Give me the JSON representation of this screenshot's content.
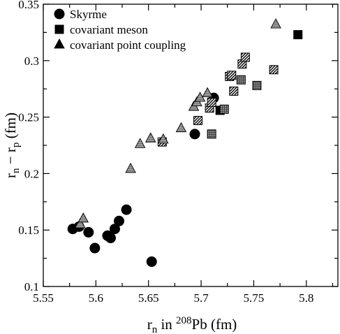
{
  "chart_data": {
    "type": "scatter",
    "xlabel": {
      "pre": "r",
      "sub": "n",
      "mid": " in ",
      "sup": "208",
      "post": "Pb (fm)"
    },
    "ylabel": {
      "r1": "r",
      "sub1": "n",
      "minus": " − r",
      "sub2": "p",
      "unit": " (fm)"
    },
    "xlim": [
      5.55,
      5.83
    ],
    "ylim": [
      0.1,
      0.35
    ],
    "x_ticks": [
      5.55,
      5.6,
      5.65,
      5.7,
      5.75,
      5.8
    ],
    "x_tick_labels": [
      "5.55",
      "5.6",
      "5.65",
      "5.7",
      "5.75",
      "5.8"
    ],
    "y_ticks": [
      0.1,
      0.15,
      0.2,
      0.25,
      0.3,
      0.35
    ],
    "y_tick_labels": [
      "0.1",
      "0.15",
      "0.2",
      "0.25",
      "0.3",
      "0.35"
    ],
    "legend_position": "top-left",
    "series": [
      {
        "name": "Skyrme",
        "marker": "circle",
        "points": [
          {
            "x": 5.578,
            "y": 0.151,
            "fill": "black"
          },
          {
            "x": 5.584,
            "y": 0.153,
            "fill": "black"
          },
          {
            "x": 5.593,
            "y": 0.148,
            "fill": "black"
          },
          {
            "x": 5.599,
            "y": 0.134,
            "fill": "black"
          },
          {
            "x": 5.611,
            "y": 0.145,
            "fill": "black"
          },
          {
            "x": 5.614,
            "y": 0.143,
            "fill": "black"
          },
          {
            "x": 5.618,
            "y": 0.151,
            "fill": "black"
          },
          {
            "x": 5.622,
            "y": 0.158,
            "fill": "black"
          },
          {
            "x": 5.629,
            "y": 0.168,
            "fill": "black"
          },
          {
            "x": 5.653,
            "y": 0.122,
            "fill": "black"
          },
          {
            "x": 5.694,
            "y": 0.235,
            "fill": "black"
          },
          {
            "x": 5.712,
            "y": 0.267,
            "fill": "black"
          }
        ]
      },
      {
        "name": "covariant meson",
        "marker": "square",
        "points": [
          {
            "x": 5.663,
            "y": 0.228,
            "fill": "hatch"
          },
          {
            "x": 5.697,
            "y": 0.247,
            "fill": "hatch"
          },
          {
            "x": 5.708,
            "y": 0.258,
            "fill": "hatch"
          },
          {
            "x": 5.71,
            "y": 0.263,
            "fill": "hatch"
          },
          {
            "x": 5.71,
            "y": 0.235,
            "fill": "grid"
          },
          {
            "x": 5.718,
            "y": 0.256,
            "fill": "black"
          },
          {
            "x": 5.722,
            "y": 0.257,
            "fill": "grid"
          },
          {
            "x": 5.727,
            "y": 0.286,
            "fill": "hatch"
          },
          {
            "x": 5.729,
            "y": 0.287,
            "fill": "hatch"
          },
          {
            "x": 5.731,
            "y": 0.273,
            "fill": "hatch"
          },
          {
            "x": 5.738,
            "y": 0.283,
            "fill": "grid"
          },
          {
            "x": 5.739,
            "y": 0.297,
            "fill": "hatch"
          },
          {
            "x": 5.742,
            "y": 0.303,
            "fill": "hatch"
          },
          {
            "x": 5.753,
            "y": 0.278,
            "fill": "grid"
          },
          {
            "x": 5.769,
            "y": 0.292,
            "fill": "hatch"
          },
          {
            "x": 5.792,
            "y": 0.323,
            "fill": "black"
          }
        ]
      },
      {
        "name": "covariant point coupling",
        "marker": "triangle",
        "points": [
          {
            "x": 5.585,
            "y": 0.155,
            "fill": "gray"
          },
          {
            "x": 5.588,
            "y": 0.16,
            "fill": "gray"
          },
          {
            "x": 5.633,
            "y": 0.204,
            "fill": "gray"
          },
          {
            "x": 5.642,
            "y": 0.226,
            "fill": "gray"
          },
          {
            "x": 5.652,
            "y": 0.231,
            "fill": "gray"
          },
          {
            "x": 5.664,
            "y": 0.23,
            "fill": "gray"
          },
          {
            "x": 5.681,
            "y": 0.24,
            "fill": "gray"
          },
          {
            "x": 5.693,
            "y": 0.259,
            "fill": "gray"
          },
          {
            "x": 5.696,
            "y": 0.263,
            "fill": "gray"
          },
          {
            "x": 5.699,
            "y": 0.267,
            "fill": "gray"
          },
          {
            "x": 5.706,
            "y": 0.271,
            "fill": "gray"
          },
          {
            "x": 5.771,
            "y": 0.332,
            "fill": "gray"
          }
        ]
      }
    ]
  }
}
